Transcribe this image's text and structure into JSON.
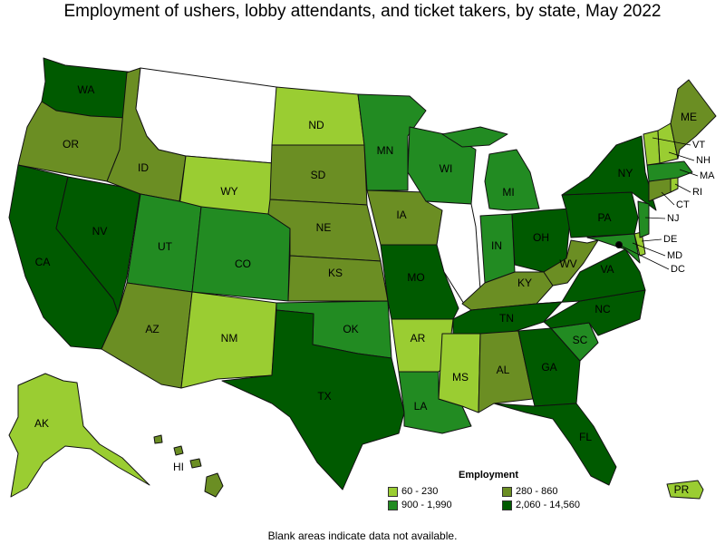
{
  "title": "Employment of ushers, lobby attendants, and ticket takers, by state, May 2022",
  "legend": {
    "title": "Employment",
    "bins": [
      {
        "label": "60 - 230",
        "color": "#9acd32"
      },
      {
        "label": "280 - 860",
        "color": "#6b8e23"
      },
      {
        "label": "900 - 1,990",
        "color": "#228b22"
      },
      {
        "label": "2,060 - 14,560",
        "color": "#005a00"
      }
    ]
  },
  "footnote": "Blank areas indicate data not available.",
  "no_data_color": "#ffffff",
  "states": [
    {
      "code": "WA",
      "bin": 3
    },
    {
      "code": "OR",
      "bin": 1
    },
    {
      "code": "CA",
      "bin": 3
    },
    {
      "code": "NV",
      "bin": 3
    },
    {
      "code": "ID",
      "bin": 1
    },
    {
      "code": "MT",
      "bin": null
    },
    {
      "code": "WY",
      "bin": 0
    },
    {
      "code": "UT",
      "bin": 2
    },
    {
      "code": "AZ",
      "bin": 1
    },
    {
      "code": "CO",
      "bin": 2
    },
    {
      "code": "NM",
      "bin": 0
    },
    {
      "code": "ND",
      "bin": 0
    },
    {
      "code": "SD",
      "bin": 1
    },
    {
      "code": "NE",
      "bin": 1
    },
    {
      "code": "KS",
      "bin": 1
    },
    {
      "code": "OK",
      "bin": 2
    },
    {
      "code": "TX",
      "bin": 3
    },
    {
      "code": "MN",
      "bin": 2
    },
    {
      "code": "IA",
      "bin": 1
    },
    {
      "code": "MO",
      "bin": 3
    },
    {
      "code": "AR",
      "bin": 0
    },
    {
      "code": "LA",
      "bin": 2
    },
    {
      "code": "WI",
      "bin": 2
    },
    {
      "code": "IL",
      "bin": null
    },
    {
      "code": "MI",
      "bin": 2
    },
    {
      "code": "IN",
      "bin": 2
    },
    {
      "code": "OH",
      "bin": 3
    },
    {
      "code": "KY",
      "bin": 1
    },
    {
      "code": "TN",
      "bin": 3
    },
    {
      "code": "MS",
      "bin": 0
    },
    {
      "code": "AL",
      "bin": 1
    },
    {
      "code": "GA",
      "bin": 3
    },
    {
      "code": "FL",
      "bin": 3
    },
    {
      "code": "SC",
      "bin": 2
    },
    {
      "code": "NC",
      "bin": 3
    },
    {
      "code": "VA",
      "bin": 3
    },
    {
      "code": "WV",
      "bin": 1
    },
    {
      "code": "PA",
      "bin": 3
    },
    {
      "code": "NY",
      "bin": 3
    },
    {
      "code": "ME",
      "bin": 1
    },
    {
      "code": "VT",
      "bin": 0
    },
    {
      "code": "NH",
      "bin": 0
    },
    {
      "code": "MA",
      "bin": 2
    },
    {
      "code": "RI",
      "bin": 0
    },
    {
      "code": "CT",
      "bin": 1
    },
    {
      "code": "NJ",
      "bin": 2
    },
    {
      "code": "DE",
      "bin": 0
    },
    {
      "code": "MD",
      "bin": 2
    },
    {
      "code": "DC",
      "bin": 3
    },
    {
      "code": "AK",
      "bin": 0
    },
    {
      "code": "HI",
      "bin": 1
    },
    {
      "code": "PR",
      "bin": 0
    }
  ]
}
